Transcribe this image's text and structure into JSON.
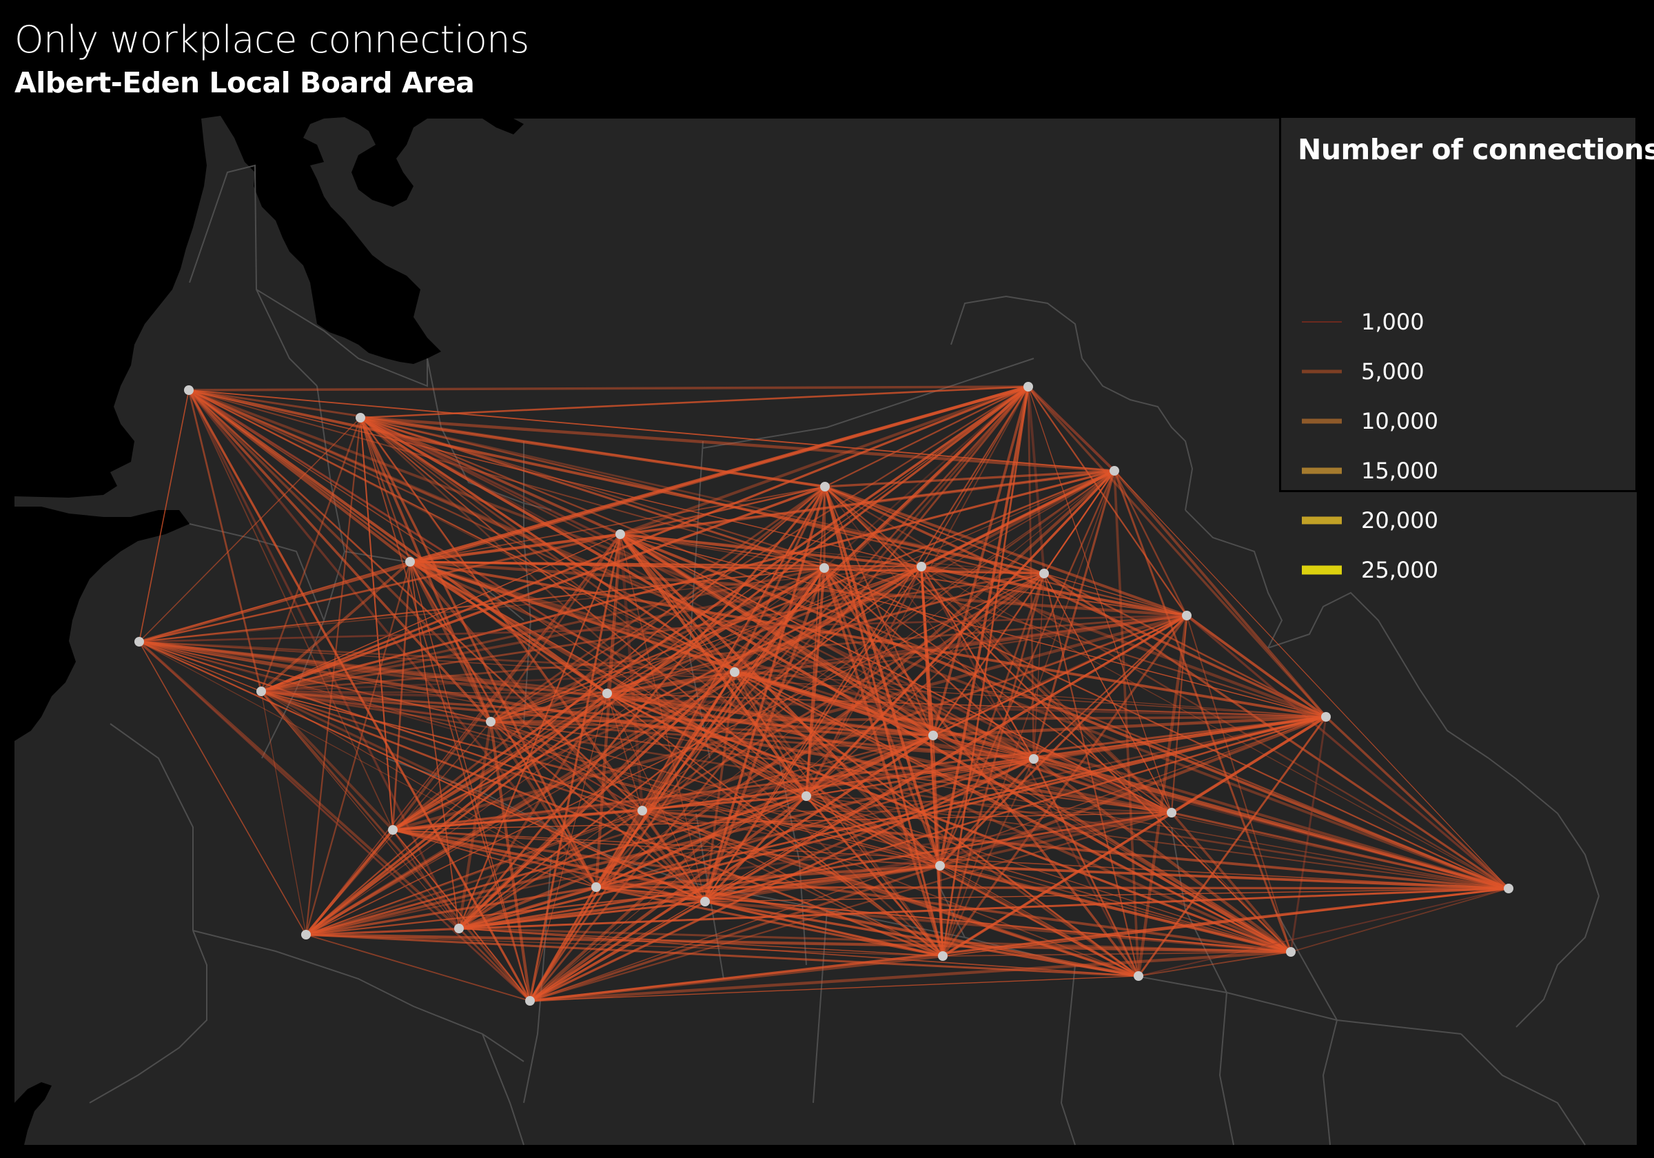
{
  "header": {
    "title": "Only workplace connections",
    "subtitle": "Albert-Eden Local Board Area"
  },
  "legend": {
    "title": "Number of connections",
    "items": [
      {
        "label": "1,000",
        "color": "#6b2a1e"
      },
      {
        "label": "5,000",
        "color": "#7e3f24"
      },
      {
        "label": "10,000",
        "color": "#8e5a2a"
      },
      {
        "label": "15,000",
        "color": "#a57b2e"
      },
      {
        "label": "20,000",
        "color": "#c2a126"
      },
      {
        "label": "25,000",
        "color": "#dcd10f"
      }
    ]
  },
  "colors": {
    "background": "#000000",
    "land": "#252525",
    "boundary": "#4a4a4a",
    "connection": "#e0552a",
    "node": "#cccccc"
  }
}
